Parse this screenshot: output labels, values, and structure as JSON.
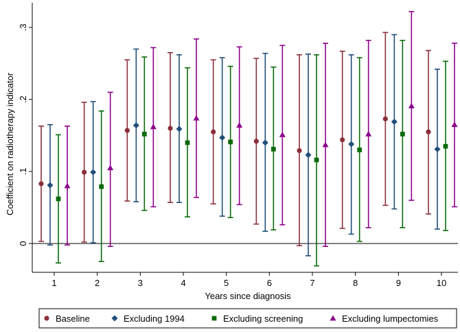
{
  "chart_data": {
    "type": "scatter",
    "subtype": "coefficient-plot-with-confidence-intervals",
    "title": "",
    "xlabel": "Years since diagnosis",
    "ylabel": "Coefficient on radiotherapy indicator",
    "categories": [
      "1",
      "2",
      "3",
      "4",
      "5",
      "6",
      "7",
      "8",
      "9",
      "10"
    ],
    "yticks": [
      0,
      0.1,
      0.2,
      0.3
    ],
    "ytick_labels": [
      "0",
      ".1",
      ".2",
      ".3"
    ],
    "ylim": [
      -0.04,
      0.33
    ],
    "reference_line_y": 0,
    "grid": false,
    "legend_position": "bottom",
    "series": [
      {
        "name": "Baseline",
        "color": "#8b2f3a",
        "marker": "circle",
        "values": [
          0.083,
          0.099,
          0.157,
          0.16,
          0.155,
          0.142,
          0.129,
          0.144,
          0.173,
          0.155
        ],
        "ci_low": [
          0.003,
          0.002,
          0.059,
          0.057,
          0.055,
          0.027,
          -0.003,
          0.021,
          0.053,
          0.041
        ],
        "ci_high": [
          0.163,
          0.196,
          0.255,
          0.265,
          0.255,
          0.257,
          0.262,
          0.267,
          0.293,
          0.268
        ]
      },
      {
        "name": "Excluding 1994",
        "color": "#1f4e79",
        "marker": "diamond",
        "values": [
          0.081,
          0.099,
          0.164,
          0.159,
          0.147,
          0.14,
          0.123,
          0.138,
          0.169,
          0.131
        ],
        "ci_low": [
          -0.002,
          0.001,
          0.058,
          0.057,
          0.038,
          0.017,
          -0.017,
          0.013,
          0.048,
          0.02
        ],
        "ci_high": [
          0.165,
          0.197,
          0.27,
          0.262,
          0.258,
          0.264,
          0.263,
          0.262,
          0.29,
          0.242
        ]
      },
      {
        "name": "Excluding screening",
        "color": "#0a6b0a",
        "marker": "square",
        "values": [
          0.062,
          0.079,
          0.152,
          0.14,
          0.141,
          0.131,
          0.116,
          0.13,
          0.152,
          0.135
        ],
        "ci_low": [
          -0.027,
          -0.025,
          0.046,
          0.037,
          0.036,
          0.019,
          -0.031,
          0.003,
          0.022,
          0.018
        ],
        "ci_high": [
          0.151,
          0.184,
          0.259,
          0.244,
          0.246,
          0.245,
          0.262,
          0.258,
          0.282,
          0.253
        ]
      },
      {
        "name": "Excluding lumpectomies",
        "color": "#8b008b",
        "marker": "triangle",
        "values": [
          0.08,
          0.105,
          0.162,
          0.174,
          0.164,
          0.151,
          0.137,
          0.152,
          0.191,
          0.165
        ],
        "ci_low": [
          -0.002,
          -0.004,
          0.051,
          0.064,
          0.054,
          0.026,
          -0.004,
          0.022,
          0.06,
          0.051
        ],
        "ci_high": [
          0.163,
          0.21,
          0.272,
          0.284,
          0.273,
          0.275,
          0.278,
          0.282,
          0.322,
          0.278
        ]
      }
    ]
  }
}
